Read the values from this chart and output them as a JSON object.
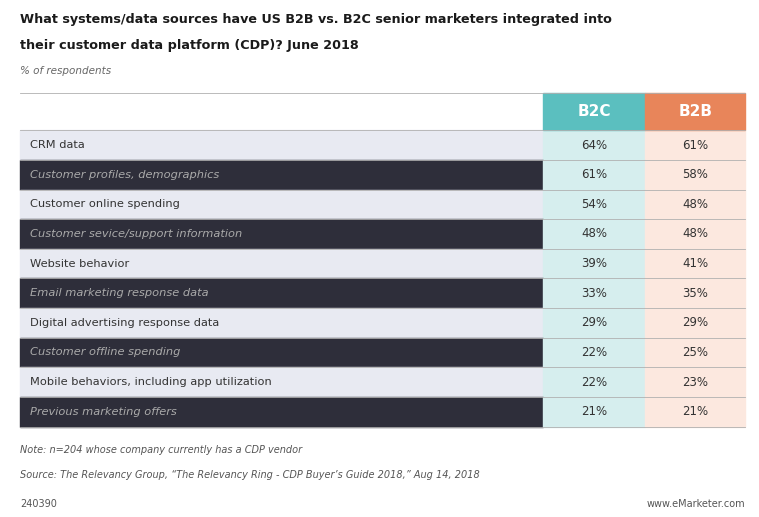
{
  "title_line1": "What systems/data sources have US B2B vs. B2C senior marketers integrated into",
  "title_line2": "their customer data platform (CDP)? June 2018",
  "subtitle": "% of respondents",
  "categories": [
    "CRM data",
    "Customer profiles, demographics",
    "Customer online spending",
    "Customer sevice/support information",
    "Website behavior",
    "Email marketing response data",
    "Digital advertising response data",
    "Customer offline spending",
    "Mobile behaviors, including app utilization",
    "Previous marketing offers"
  ],
  "italic_rows": [
    1,
    3,
    5,
    7,
    9
  ],
  "b2c_values": [
    "64%",
    "61%",
    "54%",
    "48%",
    "39%",
    "33%",
    "29%",
    "22%",
    "22%",
    "21%"
  ],
  "b2b_values": [
    "61%",
    "58%",
    "48%",
    "48%",
    "41%",
    "35%",
    "29%",
    "25%",
    "23%",
    "21%"
  ],
  "header_b2c": "B2C",
  "header_b2b": "B2B",
  "b2c_header_color": "#5bbfbf",
  "b2b_header_color": "#e8855a",
  "b2c_col_bg": "#d6eeee",
  "b2b_col_bg": "#fce8df",
  "row_bg_white": "#e8eaf2",
  "row_bg_dark": "#2e2e3a",
  "note_line1": "Note: n=204 whose company currently has a CDP vendor",
  "note_line2": "Source: The Relevancy Group, “The Relevancy Ring - CDP Buyer’s Guide 2018,” Aug 14, 2018",
  "id_text": "240390",
  "watermark": "www.eMarketer.com",
  "background_color": "#ffffff"
}
